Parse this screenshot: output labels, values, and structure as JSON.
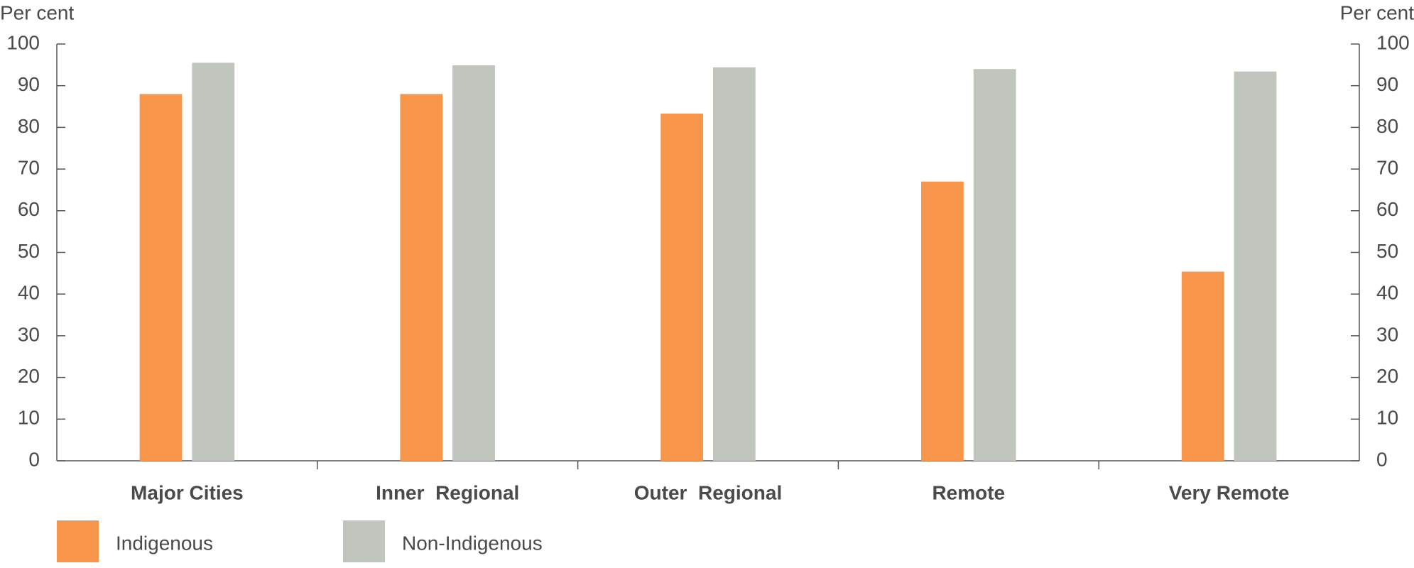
{
  "chart_data": {
    "type": "bar",
    "y_label": "Per cent",
    "y2_label": "Per cent",
    "categories": [
      "Major Cities",
      "Inner  Regional",
      "Outer  Regional",
      "Remote",
      "Very Remote"
    ],
    "series": [
      {
        "name": "Indigenous",
        "color": "#f7964a",
        "values": [
          88.0,
          88.0,
          83.3,
          67.0,
          45.4
        ]
      },
      {
        "name": "Non-Indigenous",
        "color": "#c0c5bd",
        "values": [
          95.5,
          94.9,
          94.4,
          94.0,
          93.4
        ]
      }
    ],
    "ylim": [
      0,
      100
    ],
    "yticks": [
      0,
      10,
      20,
      30,
      40,
      50,
      60,
      70,
      80,
      90,
      100
    ],
    "y2lim": [
      0,
      100
    ],
    "y2ticks": [
      0,
      10,
      20,
      30,
      40,
      50,
      60,
      70,
      80,
      90,
      100
    ],
    "grid": false
  }
}
